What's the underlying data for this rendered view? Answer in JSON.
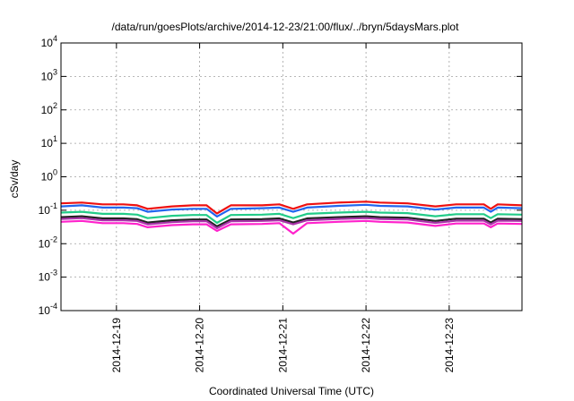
{
  "chart_data": {
    "type": "line",
    "title": "/data/run/goesPlots/archive/2014-12-23/21:00/flux/../bryn/5daysMars.plot",
    "xlabel": "Coordinated Universal Time (UTC)",
    "ylabel": "cSv/day",
    "y_scale": "log",
    "ylim": [
      0.0001,
      10000
    ],
    "y_ticks": [
      {
        "value": 0.0001,
        "base": "10",
        "exp": "-4"
      },
      {
        "value": 0.001,
        "base": "10",
        "exp": "-3"
      },
      {
        "value": 0.01,
        "base": "10",
        "exp": "-2"
      },
      {
        "value": 0.1,
        "base": "10",
        "exp": "-1"
      },
      {
        "value": 1,
        "base": "10",
        "exp": "0"
      },
      {
        "value": 10,
        "base": "10",
        "exp": "1"
      },
      {
        "value": 100,
        "base": "10",
        "exp": "2"
      },
      {
        "value": 1000,
        "base": "10",
        "exp": "3"
      },
      {
        "value": 10000,
        "base": "10",
        "exp": "4"
      }
    ],
    "xlim": [
      "2014-12-18T08:00",
      "2014-12-23T21:00"
    ],
    "x_ticks": [
      "2014-12-19",
      "2014-12-20",
      "2014-12-21",
      "2014-12-22",
      "2014-12-23"
    ],
    "grid": true,
    "legend": "none",
    "series": [
      {
        "color": "#ee1111",
        "values": [
          [
            "2014-12-18T08:00",
            0.16
          ],
          [
            "2014-12-18T14:00",
            0.17
          ],
          [
            "2014-12-18T20:00",
            0.15
          ],
          [
            "2014-12-19T02:00",
            0.15
          ],
          [
            "2014-12-19T06:00",
            0.14
          ],
          [
            "2014-12-19T09:00",
            0.11
          ],
          [
            "2014-12-19T16:00",
            0.13
          ],
          [
            "2014-12-19T22:00",
            0.14
          ],
          [
            "2014-12-20T02:00",
            0.14
          ],
          [
            "2014-12-20T05:00",
            0.08
          ],
          [
            "2014-12-20T09:00",
            0.14
          ],
          [
            "2014-12-20T18:00",
            0.14
          ],
          [
            "2014-12-20T23:00",
            0.15
          ],
          [
            "2014-12-21T03:00",
            0.11
          ],
          [
            "2014-12-21T07:00",
            0.15
          ],
          [
            "2014-12-21T16:00",
            0.17
          ],
          [
            "2014-12-22T00:00",
            0.18
          ],
          [
            "2014-12-22T04:00",
            0.17
          ],
          [
            "2014-12-22T12:00",
            0.16
          ],
          [
            "2014-12-22T20:00",
            0.13
          ],
          [
            "2014-12-23T02:00",
            0.15
          ],
          [
            "2014-12-23T10:00",
            0.15
          ],
          [
            "2014-12-23T12:00",
            0.11
          ],
          [
            "2014-12-23T14:00",
            0.15
          ],
          [
            "2014-12-23T21:00",
            0.14
          ]
        ]
      },
      {
        "color": "#2266ee",
        "values": [
          [
            "2014-12-18T08:00",
            0.13
          ],
          [
            "2014-12-18T14:00",
            0.14
          ],
          [
            "2014-12-18T20:00",
            0.12
          ],
          [
            "2014-12-19T02:00",
            0.12
          ],
          [
            "2014-12-19T06:00",
            0.115
          ],
          [
            "2014-12-19T09:00",
            0.09
          ],
          [
            "2014-12-19T16:00",
            0.105
          ],
          [
            "2014-12-19T22:00",
            0.11
          ],
          [
            "2014-12-20T02:00",
            0.11
          ],
          [
            "2014-12-20T05:00",
            0.065
          ],
          [
            "2014-12-20T09:00",
            0.11
          ],
          [
            "2014-12-20T18:00",
            0.115
          ],
          [
            "2014-12-20T23:00",
            0.12
          ],
          [
            "2014-12-21T03:00",
            0.09
          ],
          [
            "2014-12-21T07:00",
            0.12
          ],
          [
            "2014-12-21T16:00",
            0.135
          ],
          [
            "2014-12-22T00:00",
            0.145
          ],
          [
            "2014-12-22T04:00",
            0.135
          ],
          [
            "2014-12-22T12:00",
            0.13
          ],
          [
            "2014-12-22T20:00",
            0.105
          ],
          [
            "2014-12-23T02:00",
            0.12
          ],
          [
            "2014-12-23T10:00",
            0.12
          ],
          [
            "2014-12-23T12:00",
            0.09
          ],
          [
            "2014-12-23T14:00",
            0.12
          ],
          [
            "2014-12-23T21:00",
            0.115
          ]
        ]
      },
      {
        "color": "#22cc88",
        "values": [
          [
            "2014-12-18T08:00",
            0.085
          ],
          [
            "2014-12-18T14:00",
            0.09
          ],
          [
            "2014-12-18T20:00",
            0.078
          ],
          [
            "2014-12-19T02:00",
            0.078
          ],
          [
            "2014-12-19T06:00",
            0.074
          ],
          [
            "2014-12-19T09:00",
            0.058
          ],
          [
            "2014-12-19T16:00",
            0.068
          ],
          [
            "2014-12-19T22:00",
            0.072
          ],
          [
            "2014-12-20T02:00",
            0.072
          ],
          [
            "2014-12-20T05:00",
            0.042
          ],
          [
            "2014-12-20T09:00",
            0.072
          ],
          [
            "2014-12-20T18:00",
            0.074
          ],
          [
            "2014-12-20T23:00",
            0.078
          ],
          [
            "2014-12-21T03:00",
            0.058
          ],
          [
            "2014-12-21T07:00",
            0.078
          ],
          [
            "2014-12-21T16:00",
            0.085
          ],
          [
            "2014-12-22T00:00",
            0.09
          ],
          [
            "2014-12-22T04:00",
            0.085
          ],
          [
            "2014-12-22T12:00",
            0.082
          ],
          [
            "2014-12-22T20:00",
            0.066
          ],
          [
            "2014-12-23T02:00",
            0.076
          ],
          [
            "2014-12-23T10:00",
            0.076
          ],
          [
            "2014-12-23T12:00",
            0.058
          ],
          [
            "2014-12-23T14:00",
            0.076
          ],
          [
            "2014-12-23T21:00",
            0.074
          ]
        ]
      },
      {
        "color": "#222222",
        "values": [
          [
            "2014-12-18T08:00",
            0.062
          ],
          [
            "2014-12-18T14:00",
            0.066
          ],
          [
            "2014-12-18T20:00",
            0.057
          ],
          [
            "2014-12-19T02:00",
            0.057
          ],
          [
            "2014-12-19T06:00",
            0.054
          ],
          [
            "2014-12-19T09:00",
            0.043
          ],
          [
            "2014-12-19T16:00",
            0.05
          ],
          [
            "2014-12-19T22:00",
            0.053
          ],
          [
            "2014-12-20T02:00",
            0.053
          ],
          [
            "2014-12-20T05:00",
            0.033
          ],
          [
            "2014-12-20T09:00",
            0.053
          ],
          [
            "2014-12-20T18:00",
            0.054
          ],
          [
            "2014-12-20T23:00",
            0.057
          ],
          [
            "2014-12-21T03:00",
            0.043
          ],
          [
            "2014-12-21T07:00",
            0.057
          ],
          [
            "2014-12-21T16:00",
            0.062
          ],
          [
            "2014-12-22T00:00",
            0.066
          ],
          [
            "2014-12-22T04:00",
            0.062
          ],
          [
            "2014-12-22T12:00",
            0.06
          ],
          [
            "2014-12-22T20:00",
            0.048
          ],
          [
            "2014-12-23T02:00",
            0.056
          ],
          [
            "2014-12-23T10:00",
            0.056
          ],
          [
            "2014-12-23T12:00",
            0.043
          ],
          [
            "2014-12-23T14:00",
            0.056
          ],
          [
            "2014-12-23T21:00",
            0.054
          ]
        ]
      },
      {
        "color": "#aa33aa",
        "values": [
          [
            "2014-12-18T08:00",
            0.055
          ],
          [
            "2014-12-18T14:00",
            0.058
          ],
          [
            "2014-12-18T20:00",
            0.05
          ],
          [
            "2014-12-19T02:00",
            0.05
          ],
          [
            "2014-12-19T06:00",
            0.048
          ],
          [
            "2014-12-19T09:00",
            0.038
          ],
          [
            "2014-12-19T16:00",
            0.044
          ],
          [
            "2014-12-19T22:00",
            0.047
          ],
          [
            "2014-12-20T02:00",
            0.047
          ],
          [
            "2014-12-20T05:00",
            0.029
          ],
          [
            "2014-12-20T09:00",
            0.047
          ],
          [
            "2014-12-20T18:00",
            0.048
          ],
          [
            "2014-12-20T23:00",
            0.05
          ],
          [
            "2014-12-21T03:00",
            0.038
          ],
          [
            "2014-12-21T07:00",
            0.05
          ],
          [
            "2014-12-21T16:00",
            0.055
          ],
          [
            "2014-12-22T00:00",
            0.058
          ],
          [
            "2014-12-22T04:00",
            0.055
          ],
          [
            "2014-12-22T12:00",
            0.053
          ],
          [
            "2014-12-22T20:00",
            0.042
          ],
          [
            "2014-12-23T02:00",
            0.049
          ],
          [
            "2014-12-23T10:00",
            0.049
          ],
          [
            "2014-12-23T12:00",
            0.038
          ],
          [
            "2014-12-23T14:00",
            0.049
          ],
          [
            "2014-12-23T21:00",
            0.048
          ]
        ]
      },
      {
        "color": "#ff22cc",
        "values": [
          [
            "2014-12-18T08:00",
            0.045
          ],
          [
            "2014-12-18T14:00",
            0.048
          ],
          [
            "2014-12-18T20:00",
            0.041
          ],
          [
            "2014-12-19T02:00",
            0.041
          ],
          [
            "2014-12-19T06:00",
            0.039
          ],
          [
            "2014-12-19T09:00",
            0.031
          ],
          [
            "2014-12-19T16:00",
            0.036
          ],
          [
            "2014-12-19T22:00",
            0.038
          ],
          [
            "2014-12-20T02:00",
            0.038
          ],
          [
            "2014-12-20T05:00",
            0.024
          ],
          [
            "2014-12-20T09:00",
            0.038
          ],
          [
            "2014-12-20T18:00",
            0.039
          ],
          [
            "2014-12-20T23:00",
            0.041
          ],
          [
            "2014-12-21T03:00",
            0.02
          ],
          [
            "2014-12-21T07:00",
            0.041
          ],
          [
            "2014-12-21T16:00",
            0.045
          ],
          [
            "2014-12-22T00:00",
            0.048
          ],
          [
            "2014-12-22T04:00",
            0.045
          ],
          [
            "2014-12-22T12:00",
            0.043
          ],
          [
            "2014-12-22T20:00",
            0.034
          ],
          [
            "2014-12-23T02:00",
            0.04
          ],
          [
            "2014-12-23T10:00",
            0.04
          ],
          [
            "2014-12-23T12:00",
            0.031
          ],
          [
            "2014-12-23T14:00",
            0.04
          ],
          [
            "2014-12-23T21:00",
            0.039
          ]
        ]
      }
    ]
  }
}
